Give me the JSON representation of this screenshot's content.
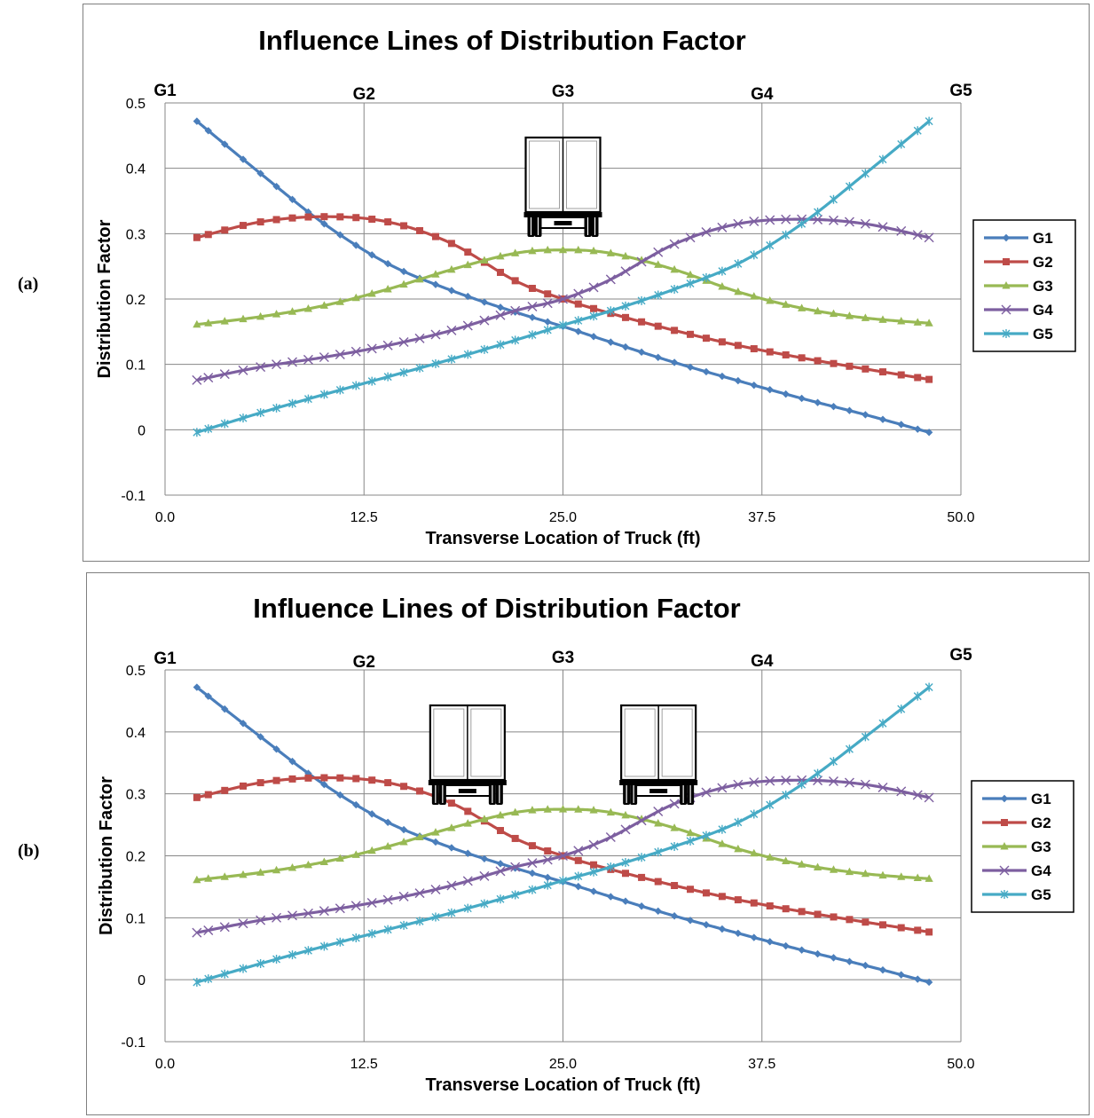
{
  "panels": [
    {
      "label": "(a)",
      "trucks": [
        25.0
      ]
    },
    {
      "label": "(b)",
      "trucks": [
        19.0,
        31.0
      ]
    }
  ],
  "colors": {
    "G1": "#4a7ebb",
    "G2": "#be4b48",
    "G3": "#98b954",
    "G4": "#7d5fa0",
    "G5": "#46aac5"
  },
  "chart_data": [
    {
      "type": "line",
      "title": "Influence Lines of Distribution Factor",
      "xlabel": "Transverse Location of Truck (ft)",
      "ylabel": "Distribution Factor",
      "xlim": [
        0,
        50
      ],
      "ylim": [
        -0.1,
        0.5
      ],
      "xticks": [
        "0.0",
        "12.5",
        "25.0",
        "37.5",
        "50.0"
      ],
      "yticks": [
        "-0.1",
        "0",
        "0.1",
        "0.2",
        "0.3",
        "0.4",
        "0.5"
      ],
      "girder_labels": [
        {
          "text": "G1",
          "x": 0
        },
        {
          "text": "G2",
          "x": 12.5
        },
        {
          "text": "G3",
          "x": 25
        },
        {
          "text": "G4",
          "x": 37.5
        },
        {
          "text": "G5",
          "x": 50
        }
      ],
      "grid": true,
      "legend": "right",
      "x": [
        2,
        6,
        10,
        14,
        18,
        22,
        25,
        28,
        32,
        36,
        40,
        44,
        48
      ],
      "series": [
        {
          "name": "G1",
          "marker": "diamond",
          "values": [
            0.472,
            0.392,
            0.315,
            0.254,
            0.213,
            0.18,
            0.158,
            0.134,
            0.103,
            0.075,
            0.048,
            0.023,
            -0.004
          ]
        },
        {
          "name": "G2",
          "marker": "square",
          "values": [
            0.294,
            0.318,
            0.326,
            0.318,
            0.285,
            0.228,
            0.2,
            0.178,
            0.152,
            0.129,
            0.11,
            0.093,
            0.077
          ]
        },
        {
          "name": "G3",
          "marker": "triangle",
          "values": [
            0.161,
            0.173,
            0.19,
            0.215,
            0.245,
            0.27,
            0.275,
            0.27,
            0.245,
            0.211,
            0.186,
            0.171,
            0.163
          ]
        },
        {
          "name": "G4",
          "marker": "x",
          "values": [
            0.076,
            0.096,
            0.111,
            0.129,
            0.152,
            0.182,
            0.2,
            0.23,
            0.284,
            0.315,
            0.322,
            0.315,
            0.294
          ]
        },
        {
          "name": "G5",
          "marker": "star",
          "values": [
            -0.004,
            0.026,
            0.054,
            0.081,
            0.108,
            0.137,
            0.16,
            0.182,
            0.215,
            0.254,
            0.315,
            0.392,
            0.472
          ]
        }
      ]
    },
    {
      "type": "line",
      "title": "Influence Lines of Distribution Factor",
      "xlabel": "Transverse Location of Truck (ft)",
      "ylabel": "Distribution Factor",
      "xlim": [
        0,
        50
      ],
      "ylim": [
        -0.1,
        0.5
      ],
      "xticks": [
        "0.0",
        "12.5",
        "25.0",
        "37.5",
        "50.0"
      ],
      "yticks": [
        "-0.1",
        "0",
        "0.1",
        "0.2",
        "0.3",
        "0.4",
        "0.5"
      ],
      "girder_labels": [
        {
          "text": "G1",
          "x": 0
        },
        {
          "text": "G2",
          "x": 12.5
        },
        {
          "text": "G3",
          "x": 25
        },
        {
          "text": "G4",
          "x": 37.5
        },
        {
          "text": "G5",
          "x": 50
        }
      ],
      "grid": true,
      "legend": "right",
      "x": [
        2,
        6,
        10,
        14,
        18,
        22,
        25,
        28,
        32,
        36,
        40,
        44,
        48
      ],
      "series": [
        {
          "name": "G1",
          "marker": "diamond",
          "values": [
            0.472,
            0.392,
            0.315,
            0.254,
            0.213,
            0.18,
            0.158,
            0.134,
            0.103,
            0.075,
            0.048,
            0.023,
            -0.004
          ]
        },
        {
          "name": "G2",
          "marker": "square",
          "values": [
            0.294,
            0.318,
            0.326,
            0.318,
            0.285,
            0.228,
            0.2,
            0.178,
            0.152,
            0.129,
            0.11,
            0.093,
            0.077
          ]
        },
        {
          "name": "G3",
          "marker": "triangle",
          "values": [
            0.161,
            0.173,
            0.19,
            0.215,
            0.245,
            0.27,
            0.275,
            0.27,
            0.245,
            0.211,
            0.186,
            0.171,
            0.163
          ]
        },
        {
          "name": "G4",
          "marker": "x",
          "values": [
            0.076,
            0.096,
            0.111,
            0.129,
            0.152,
            0.182,
            0.2,
            0.23,
            0.284,
            0.315,
            0.322,
            0.315,
            0.294
          ]
        },
        {
          "name": "G5",
          "marker": "star",
          "values": [
            -0.004,
            0.026,
            0.054,
            0.081,
            0.108,
            0.137,
            0.16,
            0.182,
            0.215,
            0.254,
            0.315,
            0.392,
            0.472
          ]
        }
      ]
    }
  ]
}
